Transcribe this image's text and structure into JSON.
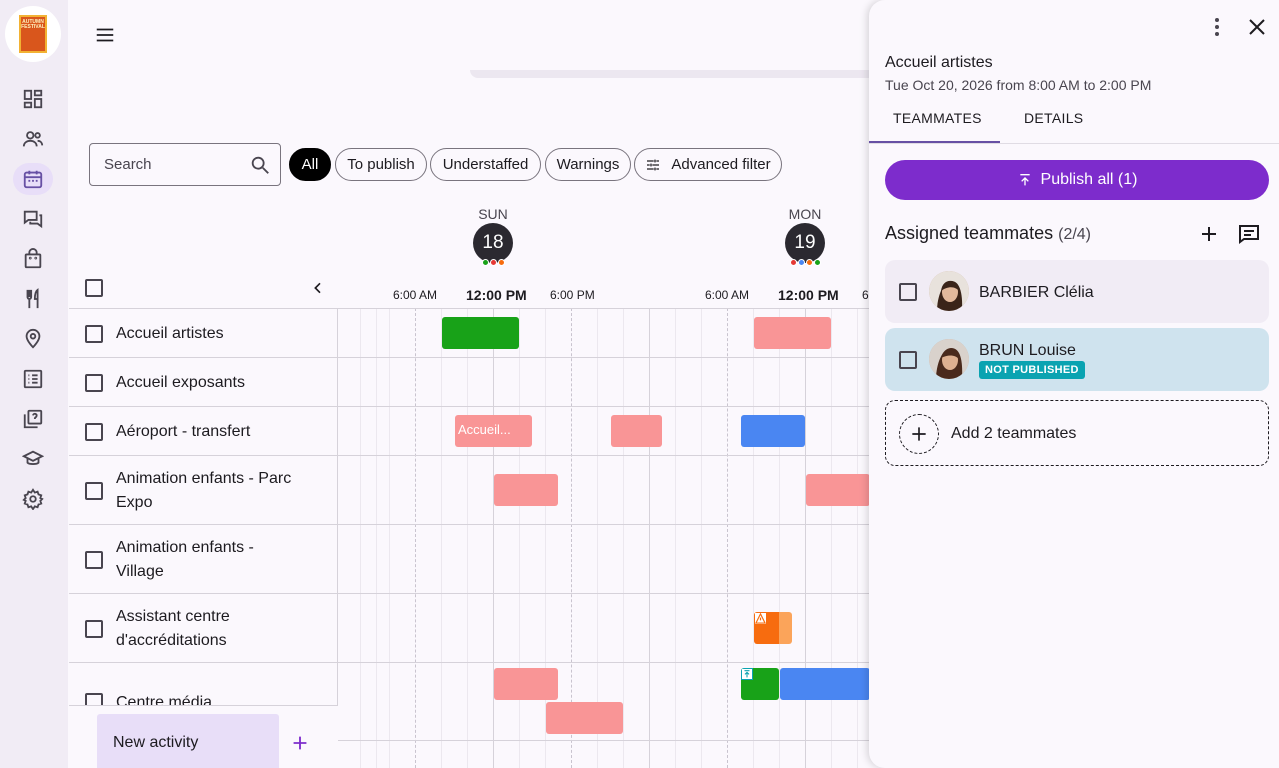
{
  "app": {
    "logo_text": "AUTUMN FESTIVAL"
  },
  "sidebar": {
    "items": [
      {
        "icon": "dashboard-icon"
      },
      {
        "icon": "people-icon"
      },
      {
        "icon": "calendar-icon",
        "active": true
      },
      {
        "icon": "chat-icon"
      },
      {
        "icon": "bag-icon"
      },
      {
        "icon": "restaurant-icon"
      },
      {
        "icon": "location-icon"
      },
      {
        "icon": "list-icon"
      },
      {
        "icon": "quiz-icon"
      },
      {
        "icon": "school-icon"
      },
      {
        "icon": "settings-icon"
      }
    ]
  },
  "search": {
    "placeholder": "Search"
  },
  "filters": {
    "all": "All",
    "to_publish": "To publish",
    "understaffed": "Understaffed",
    "warnings": "Warnings",
    "advanced": "Advanced filter"
  },
  "days": [
    {
      "name": "SUN",
      "num": "18",
      "dots": [
        "#18a218",
        "#e53935",
        "#f76c0f"
      ]
    },
    {
      "name": "MON",
      "num": "19",
      "dots": [
        "#e53935",
        "#4a86f2",
        "#f76c0f",
        "#18a218"
      ]
    }
  ],
  "times": {
    "t1": "6:00 AM",
    "t2": "12:00 PM",
    "t3": "6:00 PM",
    "t4": "6:00 AM",
    "t5": "12:00 PM",
    "t6": "6"
  },
  "rows": [
    "Accueil artistes",
    "Accueil exposants",
    "Aéroport - transfert",
    "Animation enfants - Parc Expo",
    "Animation enfants - Village",
    "Assistant centre d'accréditations",
    "Centre média"
  ],
  "shifts": {
    "accueil_label": "Accueil..."
  },
  "footer": {
    "new_activity": "New activity"
  },
  "panel": {
    "title": "Accueil artistes",
    "subtitle": "Tue Oct 20, 2026 from 8:00 AM to 2:00 PM",
    "tabs": [
      "TEAMMATES",
      "DETAILS"
    ],
    "publish_label": "Publish all (1)",
    "assigned_title": "Assigned teammates",
    "assigned_count": "(2/4)",
    "teammates": [
      {
        "name": "BARBIER Clélia",
        "published": true
      },
      {
        "name": "BRUN Louise",
        "published": false,
        "badge": "NOT PUBLISHED"
      }
    ],
    "add_label": "Add 2 teammates"
  },
  "colors": {
    "accent": "#7d2ccc",
    "selected_card": "#cfe3ee",
    "card": "#f1ecf5",
    "badge": "#0aa3b1"
  }
}
